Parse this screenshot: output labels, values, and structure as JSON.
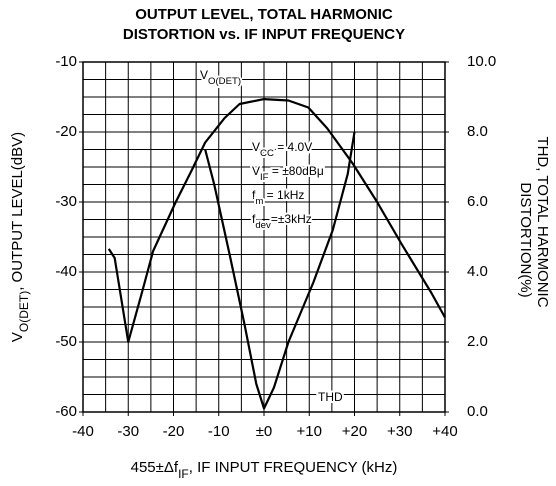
{
  "chart_data": {
    "type": "line",
    "title": [
      "OUTPUT LEVEL, TOTAL HARMONIC",
      "DISTORTION vs. IF INPUT FREQUENCY"
    ],
    "x_label": [
      "455±Δf",
      "IF",
      ", IF INPUT FREQUENCY (kHz)"
    ],
    "y_label": [
      "V",
      "O(DET)",
      ", OUTPUT LEVEL(dBV)"
    ],
    "y2_label": [
      "THD, TOTAL HARMONIC",
      "DISTORTION(%)"
    ],
    "xlim": [
      -40,
      40
    ],
    "ylim": [
      -60,
      -10
    ],
    "y2lim": [
      0,
      10
    ],
    "xticks": [
      -40,
      -30,
      -20,
      -10,
      {
        "value": 0,
        "label": "±0"
      },
      {
        "value": 10,
        "label": "+10"
      },
      {
        "value": 20,
        "label": "+20"
      },
      {
        "value": 30,
        "label": "+30"
      },
      {
        "value": 40,
        "label": "+40"
      }
    ],
    "yticks": [
      -10,
      -20,
      -30,
      -40,
      -50,
      -60
    ],
    "y2ticks": [
      {
        "value": 10,
        "label": "10.0"
      },
      {
        "value": 8,
        "label": "8.0"
      },
      {
        "value": 6,
        "label": "6.0"
      },
      {
        "value": 4,
        "label": "4.0"
      },
      {
        "value": 2,
        "label": "2.0"
      },
      {
        "value": 0,
        "label": "0.0"
      }
    ],
    "grid": true,
    "x_grid": [
      -40,
      -35,
      -30,
      -25,
      -20,
      -15,
      -10,
      -5,
      0,
      5,
      10,
      15,
      20,
      25,
      30,
      35,
      40
    ],
    "y_grid": [
      -10,
      -12.5,
      -15,
      -17.5,
      -20,
      -22.5,
      -25,
      -27.5,
      -30,
      -32.5,
      -35,
      -37.5,
      -40,
      -42.5,
      -45,
      -47.5,
      -50,
      -52.5,
      -55,
      -57.5,
      -60
    ],
    "series": [
      {
        "color": "#000000",
        "x": [
          -34.3,
          -33,
          -30,
          -27,
          -24.5,
          -19.5,
          -16,
          -13,
          -8.7,
          -5.4,
          0,
          5.4,
          9.8,
          14,
          19.6,
          25,
          30.4,
          37,
          40
        ],
        "values": [
          -36.7,
          -38,
          -50,
          -43,
          -37,
          -30,
          -25.5,
          -21.5,
          -18,
          -16,
          -15.3,
          -15.5,
          -16.5,
          -19.5,
          -24.5,
          -30,
          -36,
          -43,
          -46.5
        ]
      },
      {
        "color": "#000000",
        "axis": "y2",
        "x": [
          -13,
          -11,
          -7.6,
          -4.3,
          -1.7,
          0,
          2.2,
          5.4,
          10.9,
          15.2,
          18.5,
          20
        ],
        "values": [
          7.5,
          6.5,
          4.5,
          2.5,
          0.8,
          0.1,
          0.7,
          2.0,
          3.7,
          5.2,
          6.8,
          8.0
        ]
      }
    ],
    "annotations": [
      {
        "parts": [
          "V",
          "O(DET)"
        ]
      },
      {
        "parts": [
          "V",
          "CC",
          " = 4.0V"
        ]
      },
      {
        "parts": [
          "V",
          "IF",
          " = ±80dBμ"
        ]
      },
      {
        "parts": [
          "f",
          "m",
          " = 1kHz"
        ]
      },
      {
        "parts": [
          "f",
          "dev",
          "=±3kHz"
        ]
      },
      {
        "parts": [
          "THD"
        ]
      }
    ]
  }
}
